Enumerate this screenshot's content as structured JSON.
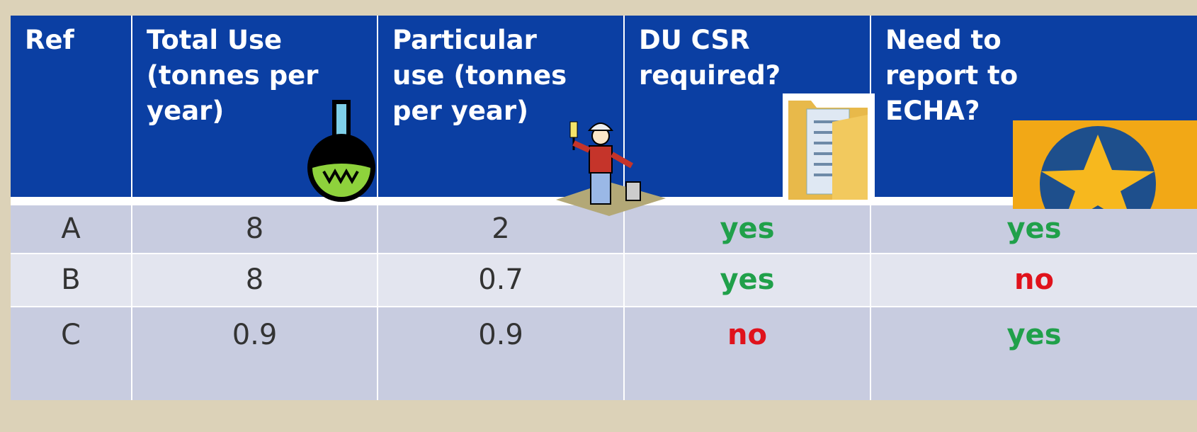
{
  "table": {
    "header": [
      "Ref",
      "Total Use\n(tonnes per\nyear)",
      "Particular\nuse (tonnes\nper year)",
      " DU CSR\nrequired?",
      "Need to\nreport to\nECHA?"
    ],
    "rows": [
      [
        "A",
        8,
        2,
        "yes",
        "yes"
      ],
      [
        "B",
        8,
        0.7,
        "yes",
        "no"
      ],
      [
        "C",
        0.9,
        0.9,
        "no",
        "yes"
      ]
    ]
  }
}
